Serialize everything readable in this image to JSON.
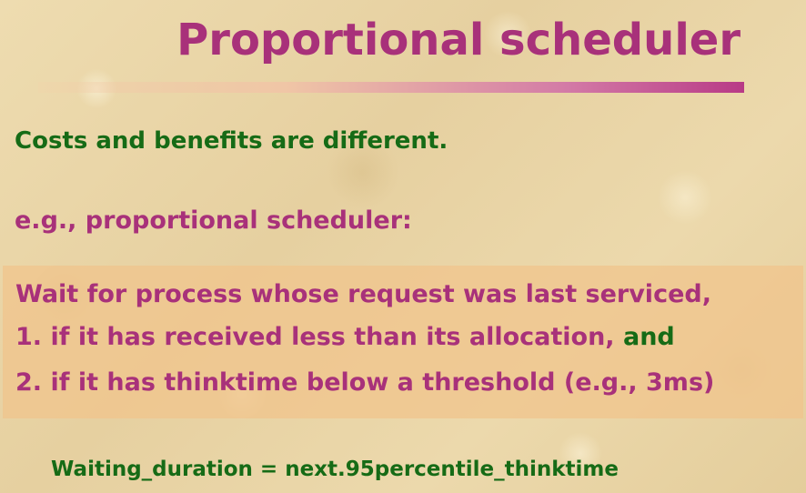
{
  "slide": {
    "title": "Proportional scheduler",
    "costs_line": "Costs and benefits are different.",
    "example_line": "e.g., proportional scheduler:",
    "box": {
      "line1": "Wait for process whose request was last serviced,",
      "line2_main": "1. if it has received less than its allocation, ",
      "line2_and": "and",
      "line3": "2. if it has thinktime below a threshold (e.g., 3ms)"
    },
    "formula": "Waiting_duration = next.95percentile_thinktime"
  },
  "colors": {
    "title": "#a8317a",
    "green": "#166b16",
    "magenta": "#a8317a",
    "box_fill": "#f0c48c"
  }
}
